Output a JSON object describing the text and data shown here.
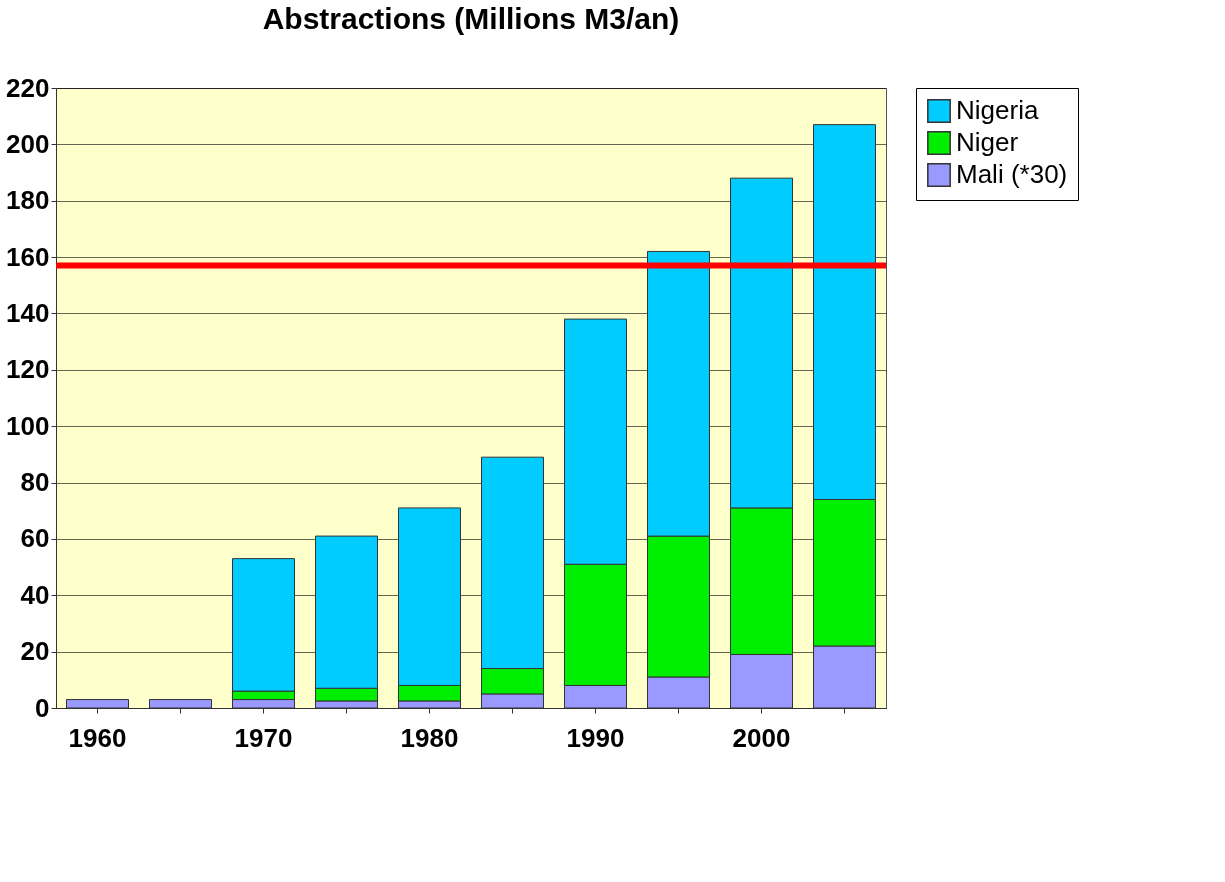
{
  "chart_data": {
    "type": "bar",
    "title": "Abstractions (Millions M3/an)",
    "stacked": true,
    "categories": [
      "1960",
      null,
      "1970",
      null,
      "1980",
      null,
      "1990",
      null,
      "2000",
      null
    ],
    "series": [
      {
        "name": "Mali (*30)",
        "color": "#9999ff",
        "values": [
          3,
          3,
          3,
          2.5,
          2.5,
          5,
          8,
          11,
          19,
          22
        ]
      },
      {
        "name": "Niger",
        "color": "#00ee00",
        "values": [
          null,
          null,
          3,
          4.5,
          5.5,
          9,
          43,
          50,
          52,
          52
        ]
      },
      {
        "name": "Nigeria",
        "color": "#00ccff",
        "values": [
          null,
          null,
          47,
          54,
          63,
          75,
          87,
          101,
          117,
          133
        ]
      }
    ],
    "ylim": [
      0,
      220
    ],
    "yticks": [
      0,
      20,
      40,
      60,
      80,
      100,
      120,
      140,
      160,
      180,
      200,
      220
    ],
    "grid": "y",
    "legend": "right",
    "ref_lines": [
      {
        "axis": "y",
        "value": 157,
        "color": "#ff0000"
      }
    ]
  }
}
